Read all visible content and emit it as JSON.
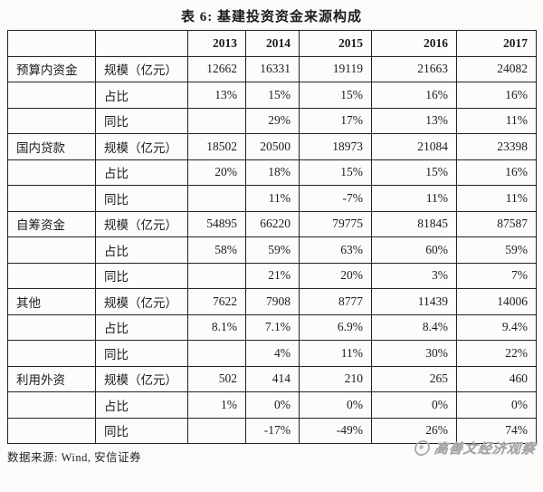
{
  "page": {
    "title": "表 6: 基建投资资金来源构成"
  },
  "table": {
    "years": [
      "2013",
      "2014",
      "2015",
      "2016",
      "2017"
    ],
    "groups": [
      {
        "category": "预算内资金",
        "rows": [
          {
            "metric": "规模（亿元）",
            "values": [
              "12662",
              "16331",
              "19119",
              "21663",
              "24082"
            ]
          },
          {
            "metric": "占比",
            "values": [
              "13%",
              "15%",
              "15%",
              "16%",
              "16%"
            ]
          },
          {
            "metric": "同比",
            "values": [
              "",
              "29%",
              "17%",
              "13%",
              "11%"
            ]
          }
        ]
      },
      {
        "category": "国内贷款",
        "rows": [
          {
            "metric": "规模（亿元）",
            "values": [
              "18502",
              "20500",
              "18973",
              "21084",
              "23398"
            ]
          },
          {
            "metric": "占比",
            "values": [
              "20%",
              "18%",
              "15%",
              "15%",
              "16%"
            ]
          },
          {
            "metric": "同比",
            "values": [
              "",
              "11%",
              "-7%",
              "11%",
              "11%"
            ]
          }
        ]
      },
      {
        "category": "自筹资金",
        "rows": [
          {
            "metric": "规模（亿元）",
            "values": [
              "54895",
              "66220",
              "79775",
              "81845",
              "87587"
            ]
          },
          {
            "metric": "占比",
            "values": [
              "58%",
              "59%",
              "63%",
              "60%",
              "59%"
            ]
          },
          {
            "metric": "同比",
            "values": [
              "",
              "21%",
              "20%",
              "3%",
              "7%"
            ]
          }
        ]
      },
      {
        "category": "其他",
        "rows": [
          {
            "metric": "规模（亿元）",
            "values": [
              "7622",
              "7908",
              "8777",
              "11439",
              "14006"
            ]
          },
          {
            "metric": "占比",
            "values": [
              "8.1%",
              "7.1%",
              "6.9%",
              "8.4%",
              "9.4%"
            ]
          },
          {
            "metric": "同比",
            "values": [
              "",
              "4%",
              "11%",
              "30%",
              "22%"
            ]
          }
        ]
      },
      {
        "category": "利用外资",
        "rows": [
          {
            "metric": "规模（亿元）",
            "values": [
              "502",
              "414",
              "210",
              "265",
              "460"
            ]
          },
          {
            "metric": "占比",
            "values": [
              "1%",
              "0%",
              "0%",
              "0%",
              "0%"
            ]
          },
          {
            "metric": "同比",
            "values": [
              "",
              "-17%",
              "-49%",
              "26%",
              "74%"
            ]
          }
        ]
      }
    ]
  },
  "footer": {
    "source_label": "数据来源: Wind, 安信证券"
  },
  "watermark": {
    "text": "高善文经济观察",
    "logo_icon": "circle-logo",
    "color": "#a0a09e"
  },
  "colors": {
    "border": "#222222",
    "text": "#1c1c1c",
    "background": "#fbfbfa"
  }
}
